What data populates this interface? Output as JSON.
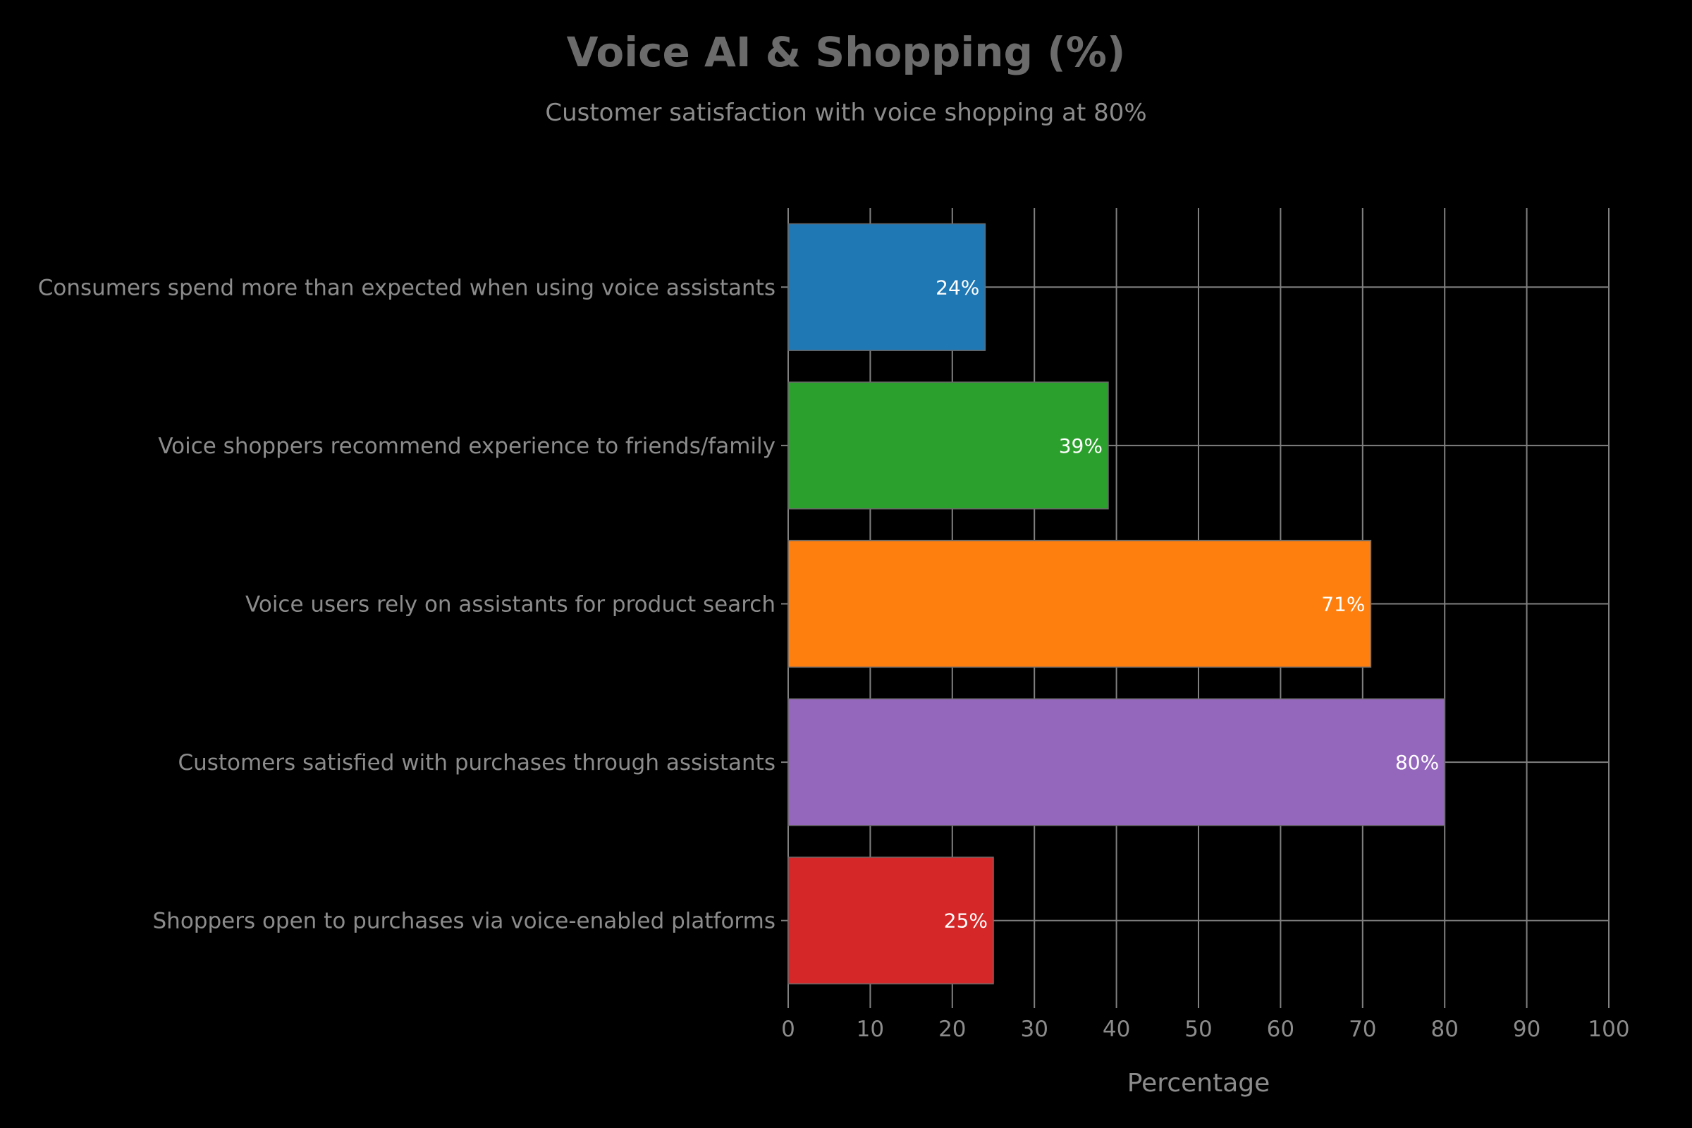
{
  "chart_data": {
    "type": "bar",
    "orientation": "horizontal",
    "title": "Voice AI & Shopping (%)",
    "subtitle": "Customer satisfaction with voice shopping at 80%",
    "xlabel": "Percentage",
    "ylabel": "",
    "xlim": [
      0,
      100
    ],
    "xticks": [
      0,
      10,
      20,
      30,
      40,
      50,
      60,
      70,
      80,
      90,
      100
    ],
    "grid": true,
    "legend": "none",
    "categories": [
      "Consumers spend more than expected when using voice assistants",
      "Voice shoppers recommend experience to friends/family",
      "Voice users rely on assistants for product search",
      "Customers satisfied with purchases through assistants",
      "Shoppers open to purchases via voice-enabled platforms"
    ],
    "values": [
      24,
      39,
      71,
      80,
      25
    ],
    "value_labels": [
      "24%",
      "39%",
      "71%",
      "80%",
      "25%"
    ],
    "colors": [
      "#1f77b4",
      "#2ca02c",
      "#ff7f0e",
      "#9467bd",
      "#d62728"
    ],
    "grid_color": "#808080",
    "axis_text_color": "#8c8c8c",
    "bar_label_color": "#ffffff"
  }
}
